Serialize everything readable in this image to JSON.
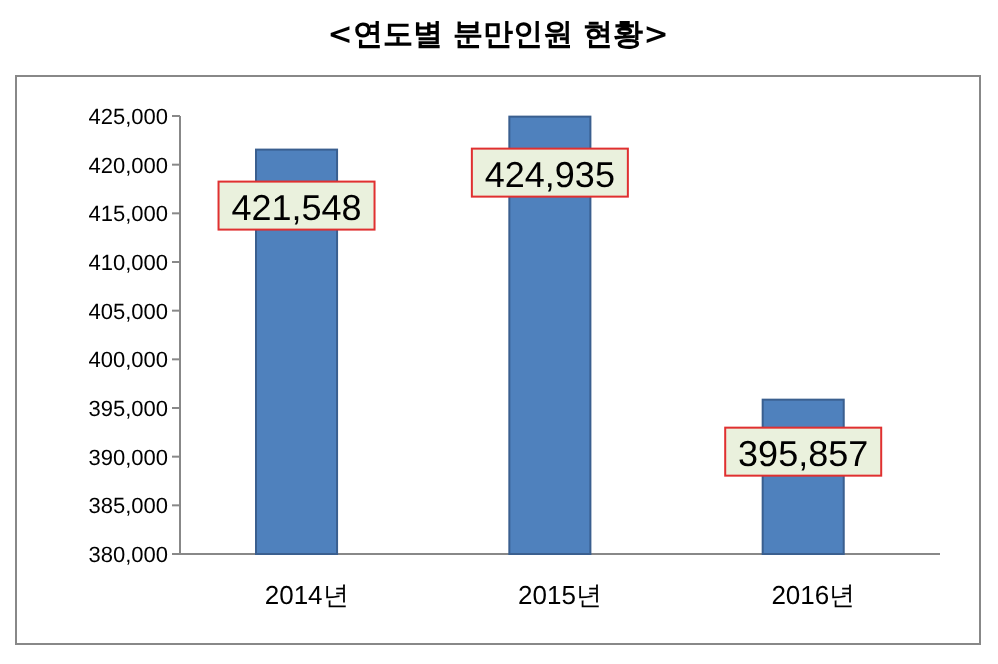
{
  "chart_data": {
    "type": "bar",
    "title": "<연도별 분만인원 현황>",
    "categories": [
      "2014년",
      "2015년",
      "2016년"
    ],
    "values": [
      421548,
      424935,
      395857
    ],
    "color": "#4f81bd",
    "data_labels": true,
    "value_labels": [
      "421,548",
      "424,935",
      "395,857"
    ],
    "ylim": [
      380000,
      425000
    ],
    "yticks": [
      {
        "value": 380000,
        "label": "380,000"
      },
      {
        "value": 385000,
        "label": "385,000"
      },
      {
        "value": 390000,
        "label": "390,000"
      },
      {
        "value": 395000,
        "label": "395,000"
      },
      {
        "value": 400000,
        "label": "400,000"
      },
      {
        "value": 405000,
        "label": "405,000"
      },
      {
        "value": 410000,
        "label": "410,000"
      },
      {
        "value": 415000,
        "label": "415,000"
      },
      {
        "value": 420000,
        "label": "420,000"
      },
      {
        "value": 425000,
        "label": "425,000"
      }
    ],
    "grid": false
  }
}
